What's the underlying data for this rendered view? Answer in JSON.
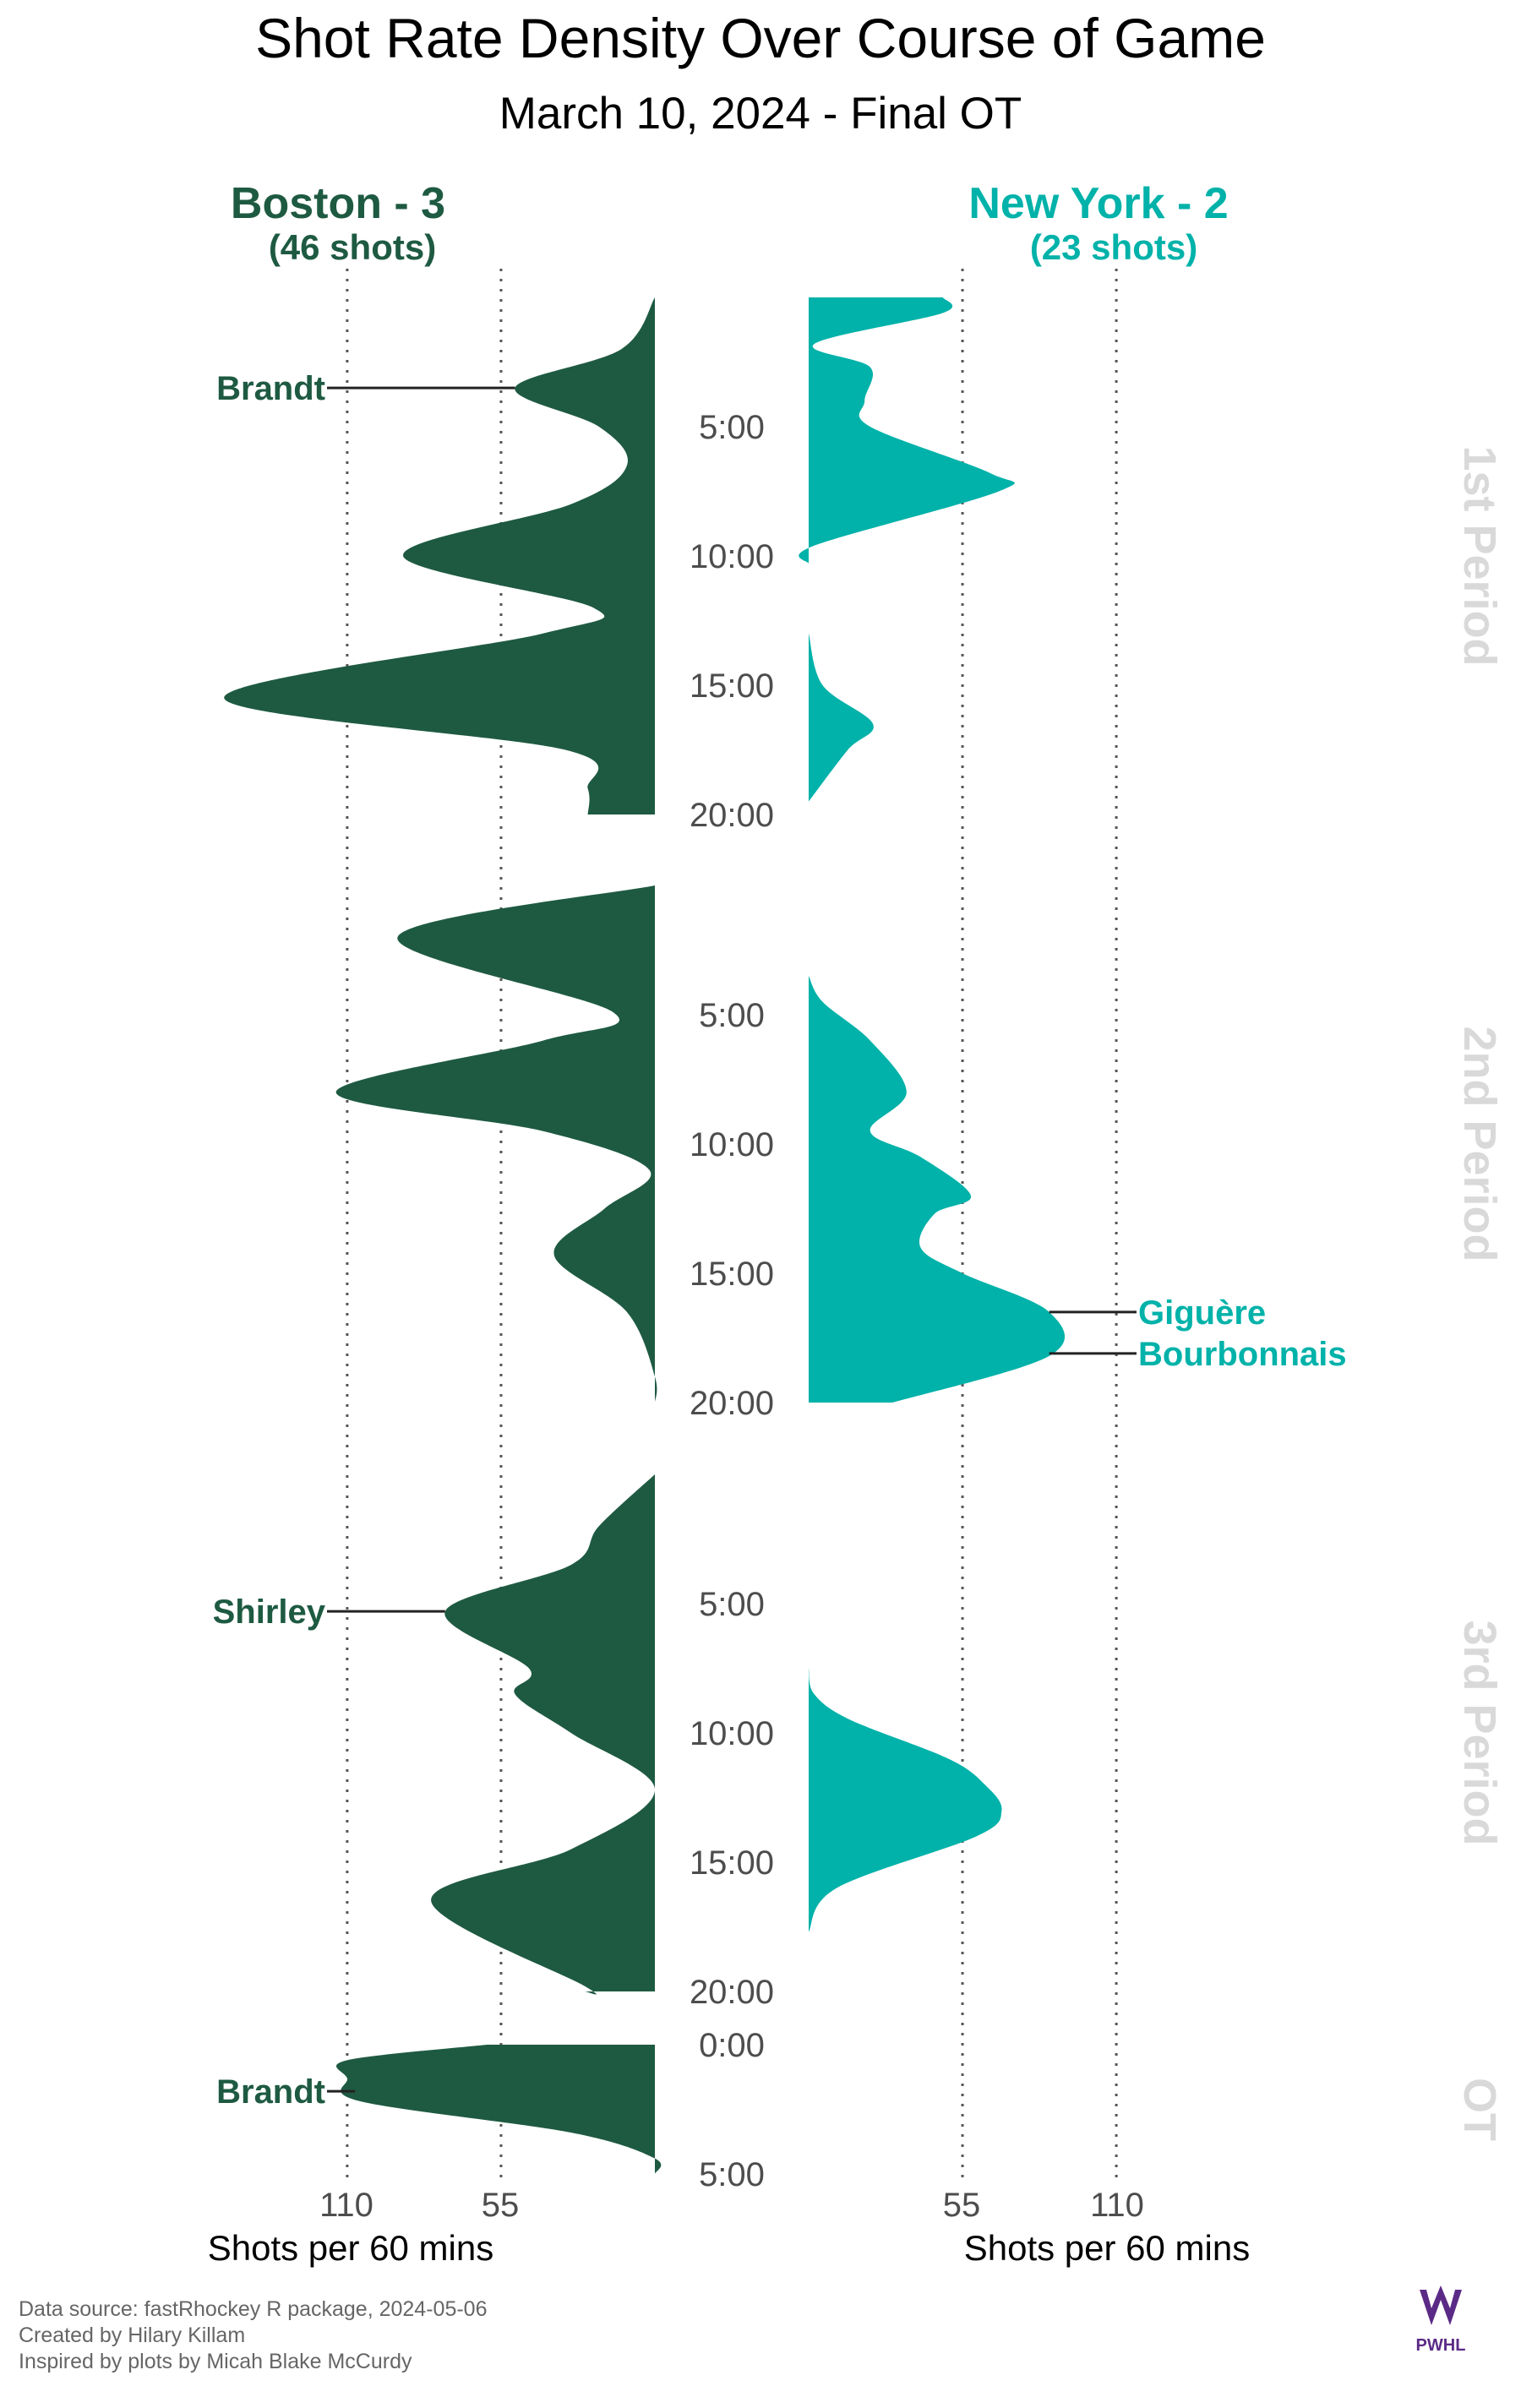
{
  "title": "Shot Rate Density Over Course of Game",
  "subtitle": "March 10, 2024 - Final OT",
  "footer": {
    "line1": "Data source: fastRhockey R package, 2024-05-06",
    "line2": "Created by Hilary Killam",
    "line3": "Inspired by plots by Micah Blake McCurdy",
    "logo_text": "PWHL"
  },
  "colors": {
    "boston": "#1e5a42",
    "new_york": "#00b2a9",
    "period_label": "#d9d9d9",
    "tick_text": "#4d4d4d",
    "axis_text": "#000000",
    "gridline": "#555555"
  },
  "chart_data": {
    "type": "area",
    "orientation": "vertical density (mirrored by team)",
    "x_axis": {
      "label": "Shots per 60 mins",
      "ticks_left": [
        "110",
        "55"
      ],
      "ticks_right": [
        "55",
        "110"
      ],
      "gridlines": [
        55,
        110
      ]
    },
    "teams": [
      {
        "key": "boston",
        "name_label": "Boston - 3",
        "shots_label": "(46 shots)",
        "side": "left",
        "color": "#1e5a42"
      },
      {
        "key": "new_york",
        "name_label": "New York - 2",
        "shots_label": "(23 shots)",
        "side": "right",
        "color": "#00b2a9"
      }
    ],
    "periods": [
      {
        "label": "1st Period",
        "length": 20,
        "time_labels": [
          "5:00",
          "10:00",
          "15:00",
          "20:00"
        ],
        "boston": {
          "t": [
            0,
            2,
            3.5,
            5,
            6.5,
            8,
            10,
            12,
            13,
            15.5,
            17.5,
            19,
            20
          ],
          "v": [
            0,
            12,
            50,
            20,
            10,
            30,
            90,
            22,
            40,
            154,
            32,
            24,
            24
          ]
        },
        "new_york": {
          "segments": [
            {
              "t": [
                0,
                0.6,
                1.8,
                2.7,
                4,
                5,
                6.8,
                7.5,
                9.6,
                10.3
              ],
              "v": [
                48,
                48,
                2,
                22,
                20,
                22,
                65,
                68,
                2,
                0
              ]
            },
            {
              "t": [
                13,
                15,
                16.5,
                17.5,
                19.5
              ],
              "v": [
                0,
                5,
                23,
                14,
                0
              ]
            }
          ]
        },
        "scorers": [
          {
            "team": "boston",
            "name": "Brandt",
            "time": 3.5
          }
        ]
      },
      {
        "label": "2nd Period",
        "length": 20,
        "time_labels": [
          "5:00",
          "10:00",
          "15:00",
          "20:00"
        ],
        "boston": {
          "t": [
            0,
            2,
            4.9,
            6,
            8,
            9.5,
            11,
            12.5,
            14.3,
            16.5,
            19,
            20
          ],
          "v": [
            0,
            92,
            15,
            40,
            114,
            40,
            2,
            18,
            36,
            10,
            0,
            0
          ]
        },
        "new_york": {
          "t": [
            3.5,
            4.5,
            6,
            8,
            9.5,
            10.5,
            12,
            12.7,
            14,
            15,
            16.5,
            18.2,
            20
          ],
          "v": [
            0,
            5,
            22,
            35,
            22,
            40,
            58,
            45,
            40,
            55,
            86,
            86,
            30
          ]
        },
        "scorers": [
          {
            "team": "new_york",
            "name": "Giguère",
            "time": 16.5
          },
          {
            "team": "new_york",
            "name": "Bourbonnais",
            "time": 18.1
          }
        ]
      },
      {
        "label": "3rd Period",
        "length": 20,
        "time_labels": [
          "5:00",
          "10:00",
          "15:00",
          "20:00"
        ],
        "boston": {
          "t": [
            0,
            2,
            3.5,
            5.3,
            7.5,
            8.5,
            10,
            12.2,
            14.5,
            16.5,
            19.8,
            20
          ],
          "v": [
            0,
            20,
            30,
            75,
            45,
            50,
            30,
            0,
            30,
            80,
            25,
            25
          ]
        },
        "new_york": {
          "t": [
            7.5,
            8.5,
            9.5,
            11,
            12,
            13,
            14,
            16,
            17.7
          ],
          "v": [
            0,
            2,
            15,
            50,
            63,
            69,
            60,
            10,
            0
          ]
        },
        "scorers": [
          {
            "team": "boston",
            "name": "Shirley",
            "time": 5.3
          }
        ]
      },
      {
        "label": "OT",
        "length": 5,
        "time_labels": [
          "0:00",
          "5:00"
        ],
        "label_at_zero": true,
        "boston": {
          "t": [
            0,
            0.6,
            1.3,
            2.2,
            3.4,
            4.4,
            5
          ],
          "v": [
            60,
            110,
            110,
            105,
            30,
            0,
            0
          ]
        },
        "new_york": null,
        "scorers": [
          {
            "team": "boston",
            "name": "Brandt",
            "time": 1.8
          }
        ]
      }
    ]
  }
}
